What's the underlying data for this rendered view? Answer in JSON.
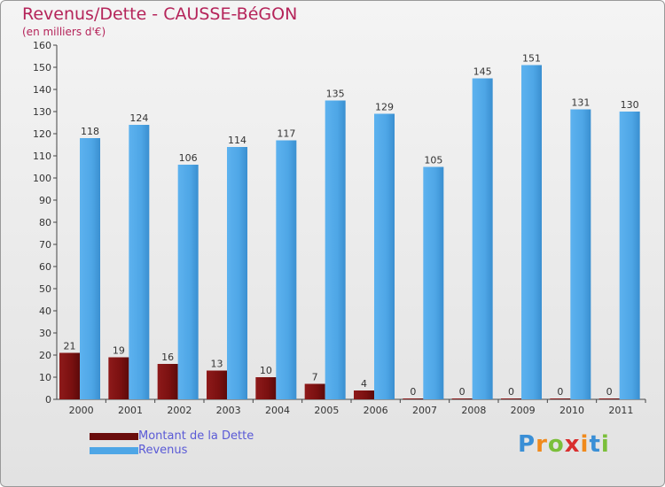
{
  "chart_data": {
    "type": "bar",
    "title": "Revenus/Dette - CAUSSE-BéGON",
    "subtitle": "(en milliers d'€)",
    "categories": [
      "2000",
      "2001",
      "2002",
      "2003",
      "2004",
      "2005",
      "2006",
      "2007",
      "2008",
      "2009",
      "2010",
      "2011"
    ],
    "series": [
      {
        "name": "Montant de la Dette",
        "color": "#7a1010",
        "values": [
          21,
          19,
          16,
          13,
          10,
          7,
          4,
          0,
          0,
          0,
          0,
          0
        ]
      },
      {
        "name": "Revenus",
        "color": "#4ea6e6",
        "values": [
          118,
          124,
          106,
          114,
          117,
          135,
          129,
          105,
          145,
          151,
          131,
          130
        ]
      }
    ],
    "ylim": [
      0,
      160
    ],
    "yticks": [
      0,
      10,
      20,
      30,
      40,
      50,
      60,
      70,
      80,
      90,
      100,
      110,
      120,
      130,
      140,
      150,
      160
    ],
    "grid": false,
    "legend_position": "bottom-left"
  },
  "logo": {
    "letters": [
      "P",
      "r",
      "o",
      "x",
      "i",
      "t",
      "i"
    ],
    "colors": [
      "#3a8fd6",
      "#f08a1c",
      "#7bbf3a",
      "#d92e2e",
      "#f08a1c",
      "#3a8fd6",
      "#7bbf3a"
    ]
  }
}
